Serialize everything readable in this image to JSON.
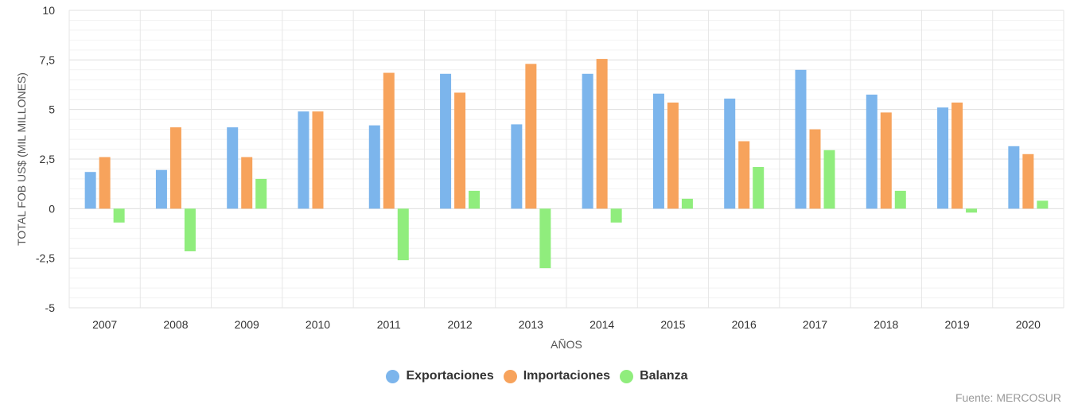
{
  "chart_data": {
    "type": "bar",
    "xlabel": "AÑOS",
    "ylabel": "TOTAL FOB US$ (MIL MILLONES)",
    "ylim": [
      -5,
      10
    ],
    "ytick_values": [
      -5,
      -2.5,
      0,
      2.5,
      5,
      7.5,
      10
    ],
    "ytick_labels": [
      "-5",
      "-2,5",
      "0",
      "2,5",
      "5",
      "7,5",
      "10"
    ],
    "categories": [
      "2007",
      "2008",
      "2009",
      "2010",
      "2011",
      "2012",
      "2013",
      "2014",
      "2015",
      "2016",
      "2017",
      "2018",
      "2019",
      "2020"
    ],
    "series": [
      {
        "name": "Exportaciones",
        "color": "#7cb5ec",
        "values": [
          1.85,
          1.95,
          4.1,
          4.9,
          4.2,
          6.8,
          4.25,
          6.8,
          5.8,
          5.55,
          7.0,
          5.75,
          5.1,
          3.15
        ]
      },
      {
        "name": "Importaciones",
        "color": "#f7a35c",
        "values": [
          2.6,
          4.1,
          2.6,
          4.9,
          6.85,
          5.85,
          7.3,
          7.55,
          5.35,
          3.4,
          4.0,
          4.85,
          5.35,
          2.75
        ]
      },
      {
        "name": "Balanza",
        "color": "#90ed7d",
        "values": [
          -0.7,
          -2.15,
          1.5,
          0.0,
          -2.6,
          0.9,
          -3.0,
          -0.7,
          0.5,
          2.1,
          2.95,
          0.9,
          -0.2,
          0.4
        ]
      }
    ],
    "legend_position": "bottom",
    "grid": true
  },
  "source": "Fuente: MERCOSUR"
}
